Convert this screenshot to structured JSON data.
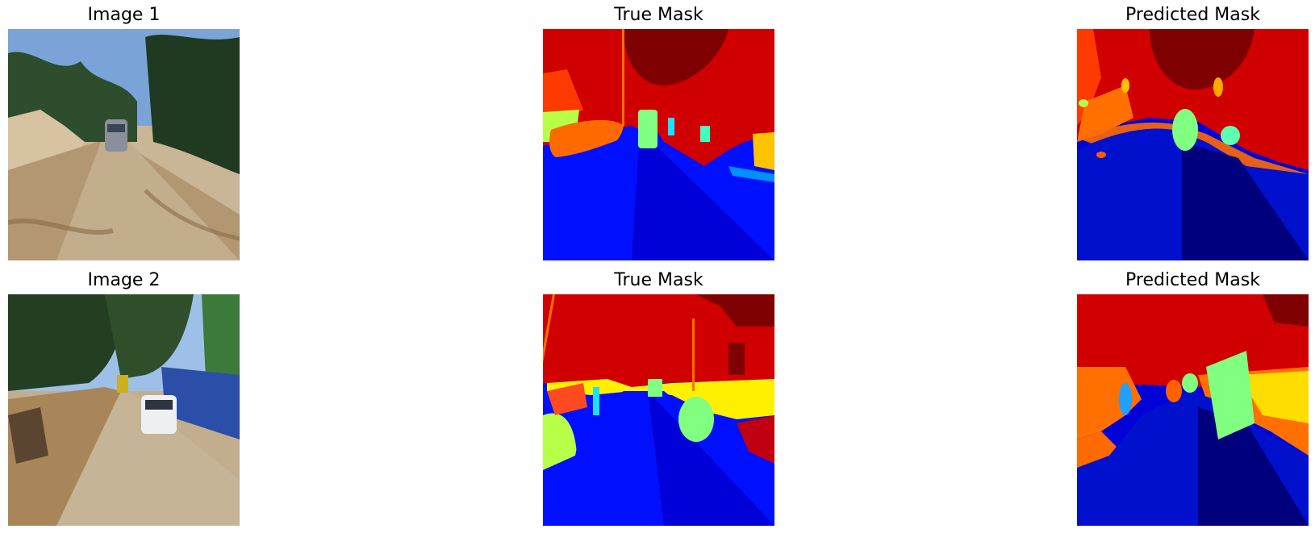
{
  "rows": [
    {
      "image_title": "Image 1",
      "true_title": "True Mask",
      "pred_title": "Predicted Mask"
    },
    {
      "image_title": "Image 2",
      "true_title": "True Mask",
      "pred_title": "Predicted Mask"
    }
  ],
  "colors": {
    "sky": "#bcd6ee",
    "vegetation": "#2e4d2c",
    "road": "#c7b79a",
    "dirt": "#b88f62",
    "mask_dark_red": "#7f0000",
    "mask_red": "#d00000",
    "mask_orange_red": "#ff3a00",
    "mask_orange": "#ff7000",
    "mask_yellow": "#fff000",
    "mask_yellow_green": "#b8ff48",
    "mask_green": "#80ff80",
    "mask_cyan": "#20e0ff",
    "mask_light_blue": "#0090ff",
    "mask_blue": "#0010ff",
    "mask_mid_blue": "#0000d8",
    "mask_navy": "#00007f"
  }
}
